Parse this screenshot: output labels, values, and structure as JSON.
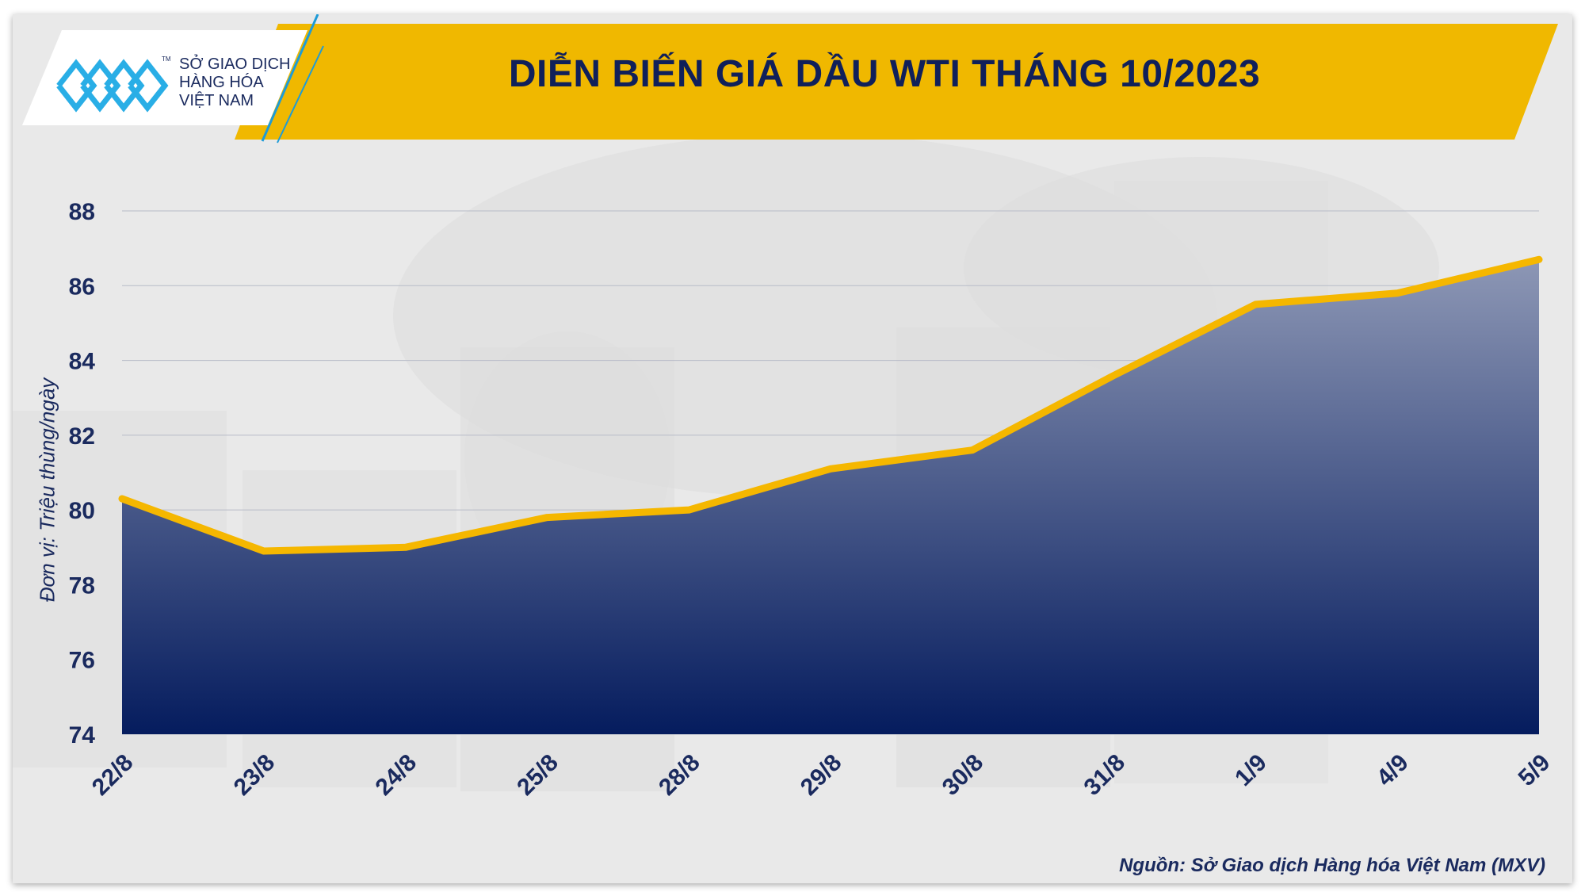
{
  "header": {
    "title": "DIỄN BIẾN GIÁ DẦU WTI THÁNG 10/2023",
    "banner_color": "#f0b800"
  },
  "logo": {
    "line1": "SỞ GIAO DỊCH",
    "line2": "HÀNG HÓA",
    "line3": "VIỆT NAM",
    "tm": "TM"
  },
  "footer": {
    "source": "Nguồn: Sở Giao dịch Hàng hóa Việt Nam (MXV)"
  },
  "chart_data": {
    "type": "area",
    "categories": [
      "22/8",
      "23/8",
      "24/8",
      "25/8",
      "28/8",
      "29/8",
      "30/8",
      "31/8",
      "1/9",
      "4/9",
      "5/9"
    ],
    "series": [
      {
        "values": [
          80.3,
          78.9,
          79.0,
          79.8,
          80.0,
          81.1,
          81.6,
          83.6,
          85.5,
          85.8,
          86.7
        ]
      }
    ],
    "ylabel": "Đơn vị: Triệu thùng/ngày",
    "xlabel": "",
    "ylim": [
      74,
      88
    ],
    "yticks": [
      74,
      76,
      78,
      80,
      82,
      84,
      86,
      88
    ],
    "grid": true,
    "legend": "none",
    "colors": {
      "line": "#f5b700",
      "fill_top": "#8d97b5",
      "fill_bottom": "#051c5e",
      "text": "#1a2a5e"
    }
  }
}
